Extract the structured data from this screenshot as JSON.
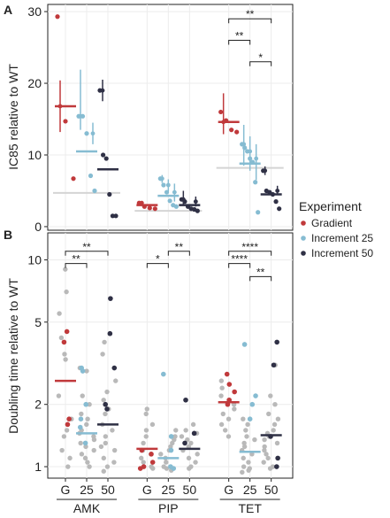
{
  "colors": {
    "gradient": "#c0393b",
    "increment25": "#86bcd2",
    "increment50": "#2f3045",
    "grey_points": "#b9b9b9",
    "grey_line": "#d4d4d4",
    "panel_bg": "#ffffff",
    "grid": "#ececec"
  },
  "legend": {
    "title": "Experiment",
    "placement": "right",
    "items": [
      {
        "key": "gradient",
        "label": "Gradient"
      },
      {
        "key": "increment25",
        "label": "Increment 25"
      },
      {
        "key": "increment50",
        "label": "Increment 50"
      }
    ]
  },
  "chart_data": [
    {
      "panel": "A",
      "type": "scatter",
      "ylabel": "IC85 relative to WT",
      "ylim": [
        -0.5,
        31
      ],
      "yticks": [
        0,
        10,
        20,
        30
      ],
      "grid": true,
      "groups": [
        {
          "drug": "AMK",
          "wt_line": 4.7,
          "series": [
            {
              "key": "gradient",
              "points": [
                29.3,
                14.7,
                6.7
              ],
              "mean": 16.8,
              "err": [
                [
                  16.8,
                  13.2,
                  20.4
                ]
              ]
            },
            {
              "key": "increment25",
              "points": [
                15.4,
                15.4,
                13.0,
                7.1,
                5.0
              ],
              "mean": 10.5,
              "err": [
                [
                  15.4,
                  13.5,
                  21.9
                ],
                [
                  13.0,
                  11.5,
                  14.5
                ]
              ]
            },
            {
              "key": "increment50",
              "points": [
                19.0,
                10.0,
                9.5,
                4.5,
                1.5,
                1.5
              ],
              "mean": 8.0,
              "err": [
                [
                  19.0,
                  17.5,
                  20.5
                ]
              ]
            }
          ]
        },
        {
          "drug": "PIP",
          "wt_line": 2.2,
          "series": [
            {
              "key": "gradient",
              "points": [
                3.3,
                2.8,
                2.6,
                2.5
              ],
              "mean": 3.0,
              "err": [
                [
                  3.3,
                  3.0,
                  3.6
                ]
              ]
            },
            {
              "key": "increment25",
              "points": [
                6.7,
                5.8,
                4.8,
                3.6,
                3.0,
                2.8
              ],
              "mean": 4.3,
              "err": [
                [
                  6.7,
                  6.1,
                  7.2
                ],
                [
                  5.8,
                  4.9,
                  6.6
                ],
                [
                  4.8,
                  3.5,
                  6.0
                ]
              ]
            },
            {
              "key": "increment50",
              "points": [
                3.8,
                3.5,
                2.8,
                2.5,
                2.4,
                2.2
              ],
              "mean": 3.0,
              "err": [
                [
                  3.8,
                  2.9,
                  5.0
                ],
                [
                  3.5,
                  2.8,
                  4.2
                ]
              ]
            }
          ]
        },
        {
          "drug": "TET",
          "wt_line": 8.2,
          "series": [
            {
              "key": "gradient",
              "points": [
                16.0,
                14.8,
                13.5,
                13.2
              ],
              "mean": 14.6,
              "err": [
                [
                  14.6,
                  12.9,
                  18.6
                ]
              ]
            },
            {
              "key": "increment25",
              "points": [
                11.5,
                11.0,
                10.5,
                9.5,
                9.0,
                6.2,
                2.0
              ],
              "mean": 8.8,
              "err": [
                [
                  11.5,
                  8.5,
                  14.2
                ],
                [
                  10.5,
                  7.8,
                  12.6
                ],
                [
                  9.5,
                  6.5,
                  11.5
                ]
              ]
            },
            {
              "key": "increment50",
              "points": [
                7.8,
                5.0,
                4.8,
                4.5,
                3.5,
                2.5
              ],
              "mean": 4.5,
              "err": [
                [
                  7.8,
                  7.2,
                  8.4
                ],
                [
                  5.0,
                  4.4,
                  5.7
                ]
              ]
            }
          ]
        }
      ],
      "significance": [
        {
          "group": "TET",
          "from": 0,
          "to": 2,
          "y": 29.0,
          "label": "**"
        },
        {
          "group": "TET",
          "from": 0,
          "to": 1,
          "y": 26.0,
          "label": "**"
        },
        {
          "group": "TET",
          "from": 1,
          "to": 2,
          "y": 23.0,
          "label": "*"
        }
      ]
    },
    {
      "panel": "B",
      "type": "scatter",
      "scale": "log",
      "ylabel": "Doubling time relative to WT",
      "ylim": [
        0.88,
        13.5
      ],
      "yticks": [
        1,
        2,
        5,
        10
      ],
      "grid": true,
      "xtick_labels": [
        "G",
        "25",
        "50"
      ],
      "xlabels": [
        "AMK",
        "PIP",
        "TET"
      ],
      "groups": [
        {
          "drug": "AMK",
          "colored": {
            "gradient": [
              4.5,
              4.0,
              1.7,
              1.6
            ],
            "increment25": [
              3.0,
              2.9,
              2.0,
              1.7,
              1.55,
              1.3
            ],
            "increment50": [
              6.5,
              4.4,
              3.0,
              2.0,
              1.9
            ]
          },
          "grey": {
            "g": [
              9.0,
              7.0,
              5.5,
              4.2,
              3.5,
              3.3,
              2.2,
              1.7,
              1.5,
              1.4,
              1.2,
              1.1,
              1.0
            ],
            "i25": [
              3.0,
              2.9,
              2.2,
              2.0,
              1.8,
              1.7,
              1.6,
              1.5,
              1.45,
              1.4,
              1.35,
              1.3,
              1.25,
              1.2,
              1.15,
              1.1,
              1.05,
              1.0
            ],
            "i50": [
              4.0,
              3.5,
              2.6,
              2.3,
              2.1,
              1.9,
              1.8,
              1.6,
              1.5,
              1.4,
              1.3,
              1.25,
              1.2,
              1.1,
              1.05,
              1.0,
              0.95
            ]
          },
          "means": {
            "gradient": 2.6,
            "increment25": 1.45,
            "increment50": 1.6
          }
        },
        {
          "drug": "PIP",
          "colored": {
            "gradient": [
              1.2,
              1.15,
              1.05,
              1.0,
              0.98
            ],
            "increment25": [
              2.8,
              1.4,
              1.2,
              1.0,
              0.98
            ],
            "increment50": [
              2.1,
              1.45,
              1.3
            ]
          },
          "grey": {
            "g": [
              1.9,
              1.8,
              1.6,
              1.5,
              1.4,
              1.3,
              1.2,
              1.15,
              1.1,
              1.05,
              1.0,
              0.98
            ],
            "i25": [
              1.5,
              1.4,
              1.35,
              1.3,
              1.25,
              1.2,
              1.15,
              1.1,
              1.05,
              1.0,
              0.98,
              0.96
            ],
            "i50": [
              1.6,
              1.5,
              1.45,
              1.4,
              1.35,
              1.3,
              1.25,
              1.2,
              1.15,
              1.1,
              1.05,
              1.0,
              0.98
            ]
          },
          "means": {
            "gradient": 1.22,
            "increment25": 1.1,
            "increment50": 1.22
          }
        },
        {
          "drug": "TET",
          "colored": {
            "gradient": [
              2.8,
              2.5,
              2.3,
              2.1,
              2.0
            ],
            "increment25": [
              3.9,
              2.2,
              2.0,
              1.7
            ],
            "increment50": [
              4.0,
              3.1,
              1.4,
              1.1,
              1.0
            ]
          },
          "grey": {
            "g": [
              2.6,
              2.4,
              2.2,
              2.1,
              2.0,
              1.9,
              1.8,
              1.7,
              1.6,
              1.5,
              1.4
            ],
            "i25": [
              1.7,
              1.6,
              1.5,
              1.4,
              1.35,
              1.3,
              1.25,
              1.2,
              1.15,
              1.1,
              1.05,
              1.0,
              0.98,
              0.96,
              0.94
            ],
            "i50": [
              3.1,
              2.2,
              2.0,
              1.8,
              1.7,
              1.6,
              1.5,
              1.45,
              1.4,
              1.35,
              1.3,
              1.25,
              1.2,
              1.15,
              1.1,
              1.05,
              1.0,
              0.98
            ]
          },
          "means": {
            "gradient": 2.05,
            "increment25": 1.18,
            "increment50": 1.42
          }
        }
      ],
      "significance": [
        {
          "group": "AMK",
          "from": 0,
          "to": 2,
          "y": 11.0,
          "label": "**"
        },
        {
          "group": "AMK",
          "from": 0,
          "to": 1,
          "y": 9.6,
          "label": "**"
        },
        {
          "group": "PIP",
          "from": 0,
          "to": 1,
          "y": 9.6,
          "label": "*"
        },
        {
          "group": "PIP",
          "from": 1,
          "to": 2,
          "y": 11.0,
          "label": "**"
        },
        {
          "group": "TET",
          "from": 0,
          "to": 2,
          "y": 11.0,
          "label": "****"
        },
        {
          "group": "TET",
          "from": 0,
          "to": 1,
          "y": 9.6,
          "label": "****"
        },
        {
          "group": "TET",
          "from": 1,
          "to": 2,
          "y": 8.3,
          "label": "**"
        }
      ]
    }
  ]
}
